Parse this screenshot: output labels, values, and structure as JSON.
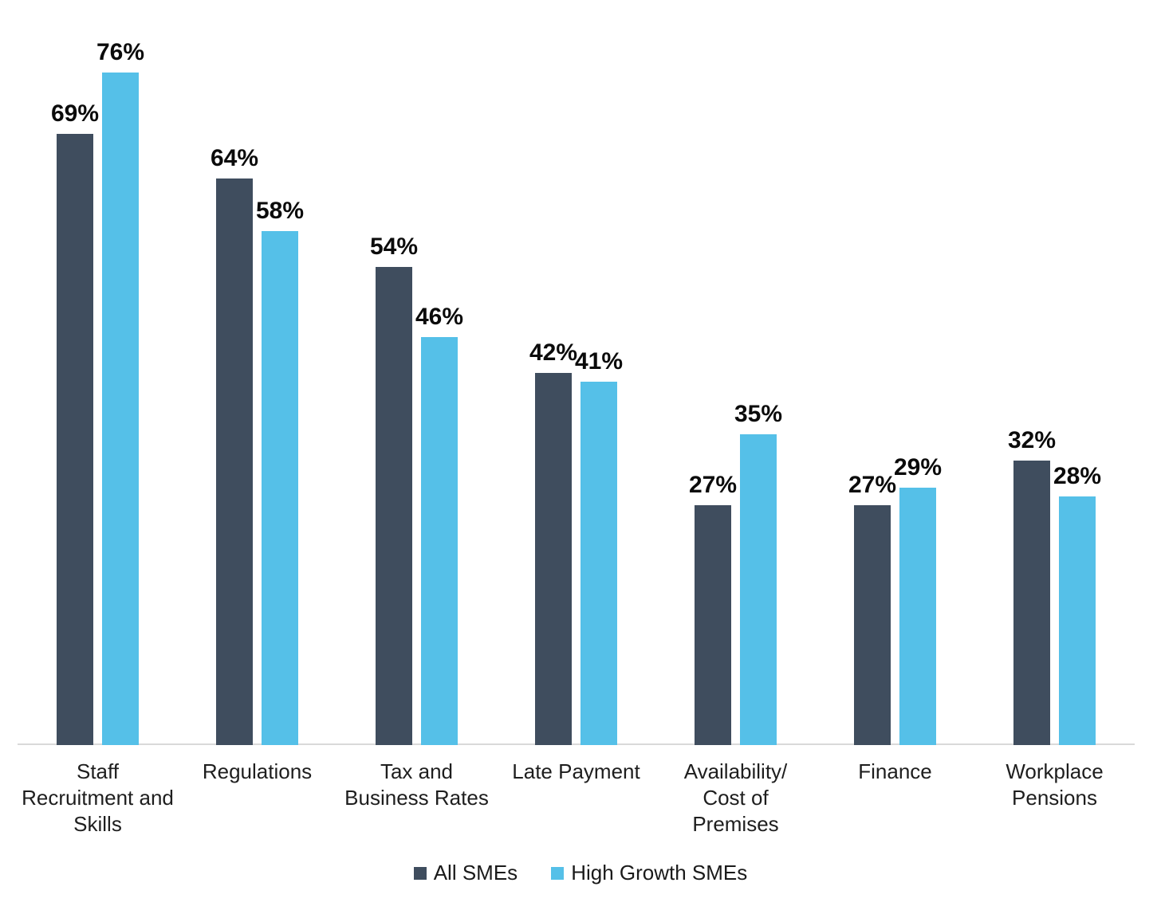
{
  "chart_data": {
    "type": "bar",
    "title": "",
    "xlabel": "",
    "ylabel": "",
    "categories": [
      "Staff\nRecruitment and\nSkills",
      "Regulations",
      "Tax and\nBusiness Rates",
      "Late Payment",
      "Availability/\nCost of\nPremises",
      "Finance",
      "Workplace\nPensions"
    ],
    "series": [
      {
        "name": "All SMEs",
        "color": "#3F4D5E",
        "values": [
          69,
          64,
          54,
          42,
          27,
          27,
          32
        ]
      },
      {
        "name": "High Growth SMEs",
        "color": "#55C0E8",
        "values": [
          76,
          58,
          46,
          41,
          35,
          29,
          28
        ]
      }
    ],
    "value_suffix": "%",
    "ylim": [
      0,
      80
    ],
    "grid": false,
    "legend_position": "bottom",
    "colors": {
      "axis_line": "#D9D9D9",
      "value_label": "#0B0B0B",
      "category_label": "#1E1E1E",
      "legend_label": "#1A1A1A",
      "background": "#FFFFFF"
    }
  }
}
